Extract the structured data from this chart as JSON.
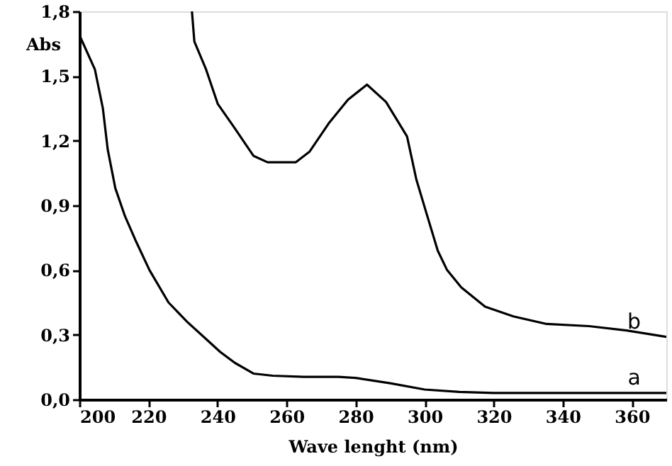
{
  "chart_data": {
    "type": "line",
    "xlabel": "Wave lenght (nm)",
    "ylabel": "Abs",
    "xlim": [
      200,
      370
    ],
    "xticks": [
      200,
      220,
      240,
      260,
      280,
      300,
      320,
      340,
      360
    ],
    "ylim": [
      0,
      1.8
    ],
    "yticks": [
      {
        "value": 0,
        "label": "0,0"
      },
      {
        "value": 0.3,
        "label": "0,3"
      },
      {
        "value": 0.6,
        "label": "0,6"
      },
      {
        "value": 0.9,
        "label": "0,9"
      },
      {
        "value": 1.2,
        "label": "1,2"
      },
      {
        "value": 1.5,
        "label": "1,5"
      },
      {
        "value": 1.8,
        "label": "1,8"
      }
    ],
    "grid": false,
    "series": [
      {
        "color": "#000000",
        "x": [
          200,
          204.5,
          206.8,
          208.2,
          210.4,
          213.2,
          216.2,
          220.3,
          225.8,
          231.2,
          236.7,
          240.8,
          245,
          250.4,
          256,
          265,
          275,
          280,
          290,
          300,
          310,
          320,
          340,
          370
        ],
        "values": [
          1.69,
          1.53,
          1.35,
          1.16,
          0.98,
          0.85,
          0.74,
          0.6,
          0.45,
          0.36,
          0.28,
          0.22,
          0.17,
          0.12,
          0.11,
          0.105,
          0.105,
          0.1,
          0.075,
          0.046,
          0.035,
          0.03,
          0.03,
          0.03
        ]
      },
      {
        "color": "#000000",
        "x": [
          232.6,
          233.3,
          236.7,
          240.1,
          244.9,
          250.4,
          254.5,
          262.7,
          266.7,
          272.2,
          277.8,
          283.3,
          288.8,
          294.9,
          297.6,
          300.4,
          303.8,
          306.5,
          310.6,
          317.5,
          325.7,
          335.3,
          347.6,
          358.5,
          370
        ],
        "values": [
          1.8,
          1.66,
          1.53,
          1.37,
          1.26,
          1.13,
          1.1,
          1.1,
          1.15,
          1.28,
          1.39,
          1.46,
          1.38,
          1.22,
          1.02,
          0.87,
          0.69,
          0.6,
          0.52,
          0.43,
          0.385,
          0.35,
          0.34,
          0.32,
          0.29
        ]
      }
    ],
    "annotations": [
      "a",
      "b"
    ]
  }
}
